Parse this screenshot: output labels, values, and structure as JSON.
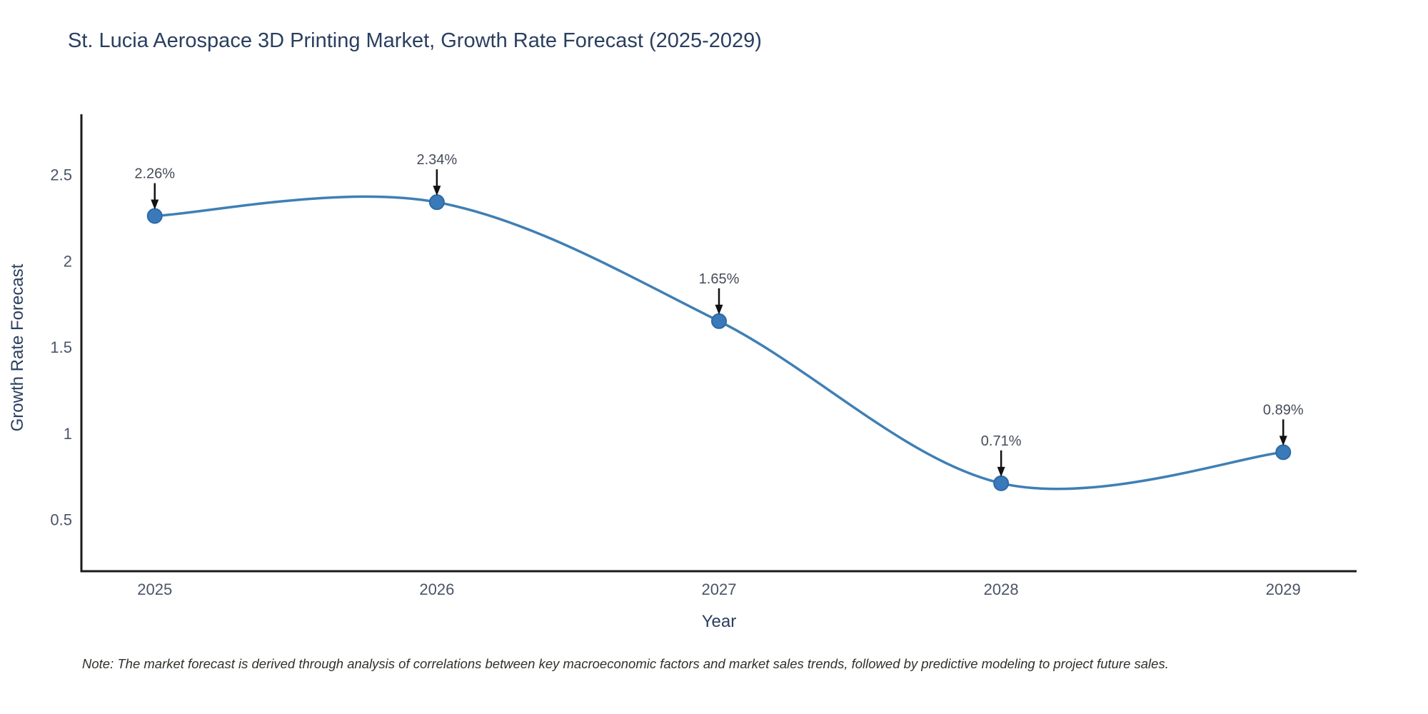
{
  "page": {
    "background": "#ffffff"
  },
  "chart_data": {
    "type": "line",
    "title": "St. Lucia Aerospace 3D Printing Market, Growth Rate Forecast (2025-2029)",
    "xlabel": "Year",
    "ylabel": "Growth Rate Forecast",
    "x": [
      2025,
      2026,
      2027,
      2028,
      2029
    ],
    "xtick_labels": [
      "2025",
      "2026",
      "2027",
      "2028",
      "2029"
    ],
    "values": [
      2.26,
      2.34,
      1.65,
      0.71,
      0.89
    ],
    "point_labels": [
      "2.26%",
      "2.34%",
      "1.65%",
      "0.71%",
      "0.89%"
    ],
    "yticks": [
      0.5,
      1,
      1.5,
      2,
      2.5
    ],
    "ytick_labels": [
      "0.5",
      "1",
      "1.5",
      "2",
      "2.5"
    ],
    "xlim": [
      2024.74,
      2029.26
    ],
    "ylim": [
      0.2,
      2.85
    ],
    "grid": false,
    "legend_position": "none",
    "line_shape": "spline",
    "line_color": "#3f7fb5",
    "marker_fill": "#3a7aba",
    "marker_edge": "#2e6aa5",
    "arrow_color": "#111111",
    "axis_color": "#1b1b1b",
    "title_color": "#2a3f5f",
    "axis_title_color": "#2a3f5f",
    "tick_color": "#4a5468",
    "annotation_color": "#454c59",
    "note_color": "#30302b",
    "note": "Note: The market forecast is derived through analysis of correlations between key macroeconomic factors and market sales trends, followed by predictive modeling to project future sales."
  }
}
